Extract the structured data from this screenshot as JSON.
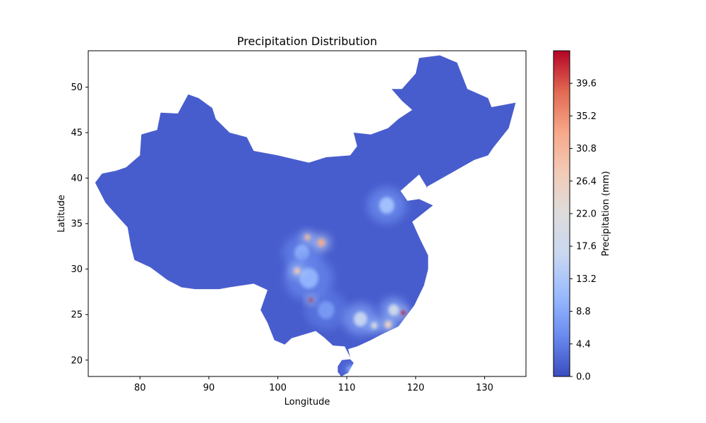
{
  "chart_data": {
    "type": "heatmap",
    "title": "Precipitation Distribution",
    "xlabel": "Longitude",
    "ylabel": "Latitude",
    "xlim": [
      72.5,
      136
    ],
    "ylim": [
      18.2,
      54
    ],
    "xticks": [
      80,
      90,
      100,
      110,
      120,
      130
    ],
    "yticks": [
      20,
      25,
      30,
      35,
      40,
      45,
      50
    ],
    "grid": false,
    "colorbar": {
      "label": "Precipitation (mm)",
      "range": [
        0,
        44
      ],
      "ticks": [
        "0.0",
        "4.4",
        "8.8",
        "13.2",
        "17.6",
        "22.0",
        "26.4",
        "30.8",
        "35.2",
        "39.6"
      ],
      "colormap": "coolwarm",
      "colors": [
        "#3b4cc0",
        "#6a8bef",
        "#9abbff",
        "#c9d7f0",
        "#dddcdc",
        "#f2cbb7",
        "#f7a889",
        "#e26952",
        "#b40426"
      ]
    },
    "region_outline": [
      [
        73.5,
        39.5
      ],
      [
        74.5,
        40.5
      ],
      [
        76.5,
        40.8
      ],
      [
        78,
        41.2
      ],
      [
        80,
        42.5
      ],
      [
        80.2,
        44.8
      ],
      [
        82.5,
        45.3
      ],
      [
        83,
        47.2
      ],
      [
        85.5,
        47.1
      ],
      [
        87,
        49.2
      ],
      [
        88.5,
        48.8
      ],
      [
        90.5,
        47.7
      ],
      [
        91,
        46.5
      ],
      [
        93,
        45
      ],
      [
        95.5,
        44.5
      ],
      [
        96.5,
        43
      ],
      [
        100,
        42.5
      ],
      [
        104.5,
        41.7
      ],
      [
        107,
        42.3
      ],
      [
        110.5,
        42.5
      ],
      [
        111.5,
        43.5
      ],
      [
        111,
        45
      ],
      [
        113.5,
        44.8
      ],
      [
        116,
        45.5
      ],
      [
        117.5,
        46.5
      ],
      [
        119.5,
        47.5
      ],
      [
        118,
        48.5
      ],
      [
        116.5,
        49.8
      ],
      [
        118,
        49.8
      ],
      [
        120,
        51.5
      ],
      [
        120.5,
        53.2
      ],
      [
        123.5,
        53.5
      ],
      [
        126,
        52.7
      ],
      [
        127.5,
        49.8
      ],
      [
        130.5,
        48.8
      ],
      [
        131,
        47.8
      ],
      [
        134.5,
        48.3
      ],
      [
        133.5,
        45.5
      ],
      [
        131.2,
        43.3
      ],
      [
        130.5,
        42.5
      ],
      [
        128.5,
        42
      ],
      [
        125,
        40.5
      ],
      [
        121.5,
        39
      ],
      [
        121.7,
        38.9
      ],
      [
        120.5,
        40.4
      ],
      [
        119,
        39.4
      ],
      [
        117.8,
        38.6
      ],
      [
        118.8,
        37.5
      ],
      [
        120.5,
        37.7
      ],
      [
        122.5,
        37
      ],
      [
        119.5,
        35.2
      ],
      [
        120.7,
        33.2
      ],
      [
        121.8,
        31.5
      ],
      [
        121.8,
        30
      ],
      [
        121.2,
        28.2
      ],
      [
        119.8,
        26
      ],
      [
        117.5,
        23.7
      ],
      [
        115,
        22.8
      ],
      [
        113.5,
        22.2
      ],
      [
        111.5,
        21.5
      ],
      [
        110.2,
        21.2
      ],
      [
        110.5,
        20.3
      ],
      [
        109.7,
        21.5
      ],
      [
        108,
        21.6
      ],
      [
        106.7,
        22.5
      ],
      [
        105.5,
        23.2
      ],
      [
        102,
        22.4
      ],
      [
        101,
        21.7
      ],
      [
        99.5,
        22.2
      ],
      [
        98.5,
        24.1
      ],
      [
        97.5,
        25.5
      ],
      [
        98.5,
        27.7
      ],
      [
        96.5,
        28.4
      ],
      [
        93,
        28
      ],
      [
        91.5,
        27.8
      ],
      [
        89,
        27.8
      ],
      [
        88,
        27.8
      ],
      [
        86,
        28
      ],
      [
        84,
        28.8
      ],
      [
        81.5,
        30.2
      ],
      [
        79.2,
        31
      ],
      [
        78.7,
        32.5
      ],
      [
        78.2,
        34.6
      ],
      [
        77,
        35.6
      ],
      [
        75,
        37.3
      ],
      [
        73.5,
        39.5
      ]
    ],
    "hainan_outline": [
      [
        108.7,
        18.7
      ],
      [
        109.2,
        18.2
      ],
      [
        110.2,
        18.6
      ],
      [
        111,
        19.7
      ],
      [
        110.5,
        20.1
      ],
      [
        109.3,
        20
      ],
      [
        108.7,
        19.3
      ],
      [
        108.7,
        18.7
      ]
    ],
    "base_value": 1.5,
    "hotspots": [
      {
        "lon": 118.2,
        "lat": 25.2,
        "value": 44,
        "radius": 0.5
      },
      {
        "lon": 104.8,
        "lat": 26.6,
        "value": 42,
        "radius": 0.45
      },
      {
        "lon": 106.3,
        "lat": 32.9,
        "value": 33,
        "radius": 0.9
      },
      {
        "lon": 104.3,
        "lat": 33.5,
        "value": 31,
        "radius": 0.7
      },
      {
        "lon": 102.8,
        "lat": 29.8,
        "value": 28,
        "radius": 0.8
      },
      {
        "lon": 116.0,
        "lat": 23.9,
        "value": 26,
        "radius": 0.9
      },
      {
        "lon": 114.0,
        "lat": 23.8,
        "value": 22,
        "radius": 0.8
      },
      {
        "lon": 112.0,
        "lat": 24.5,
        "value": 16,
        "radius": 1.8
      },
      {
        "lon": 116.8,
        "lat": 25.5,
        "value": 18,
        "radius": 1.4
      },
      {
        "lon": 115.8,
        "lat": 37.0,
        "value": 12,
        "radius": 2.0
      },
      {
        "lon": 104.5,
        "lat": 29.0,
        "value": 10,
        "radius": 2.5
      },
      {
        "lon": 103.5,
        "lat": 31.8,
        "value": 9,
        "radius": 2.0
      },
      {
        "lon": 110.5,
        "lat": 19.0,
        "value": 9,
        "radius": 0.8
      },
      {
        "lon": 107.0,
        "lat": 25.5,
        "value": 7,
        "radius": 2.2
      }
    ]
  }
}
